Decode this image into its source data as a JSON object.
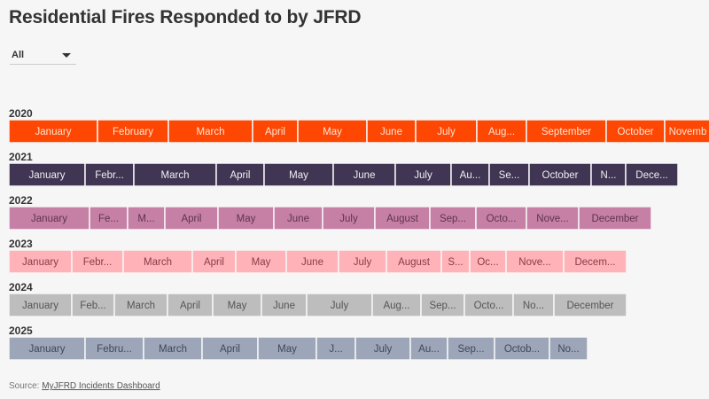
{
  "title": "Residential Fires Responded to by JFRD",
  "filter": {
    "selected": "All"
  },
  "source": {
    "label": "Source:",
    "link_text": "MyJFRD Incidents Dashboard"
  },
  "chart_data": {
    "type": "bar",
    "orientation": "horizontal-stacked",
    "title": "Residential Fires Responded to by JFRD",
    "note": "values are relative segment sizes estimated from bar widths; no numeric axis shown",
    "grid": false,
    "series": [
      {
        "name": "2020",
        "color": "#fd4703",
        "text_color": "#ffe3d2",
        "labels": [
          "January",
          "February",
          "March",
          "April",
          "May",
          "June",
          "July",
          "Aug...",
          "September",
          "October",
          "Novemb"
        ],
        "values": [
          100,
          80,
          95,
          51,
          78,
          55,
          69,
          56,
          90,
          66,
          52
        ]
      },
      {
        "name": "2021",
        "color": "#403552",
        "text_color": "#f0eef4",
        "labels": [
          "January",
          "Febr...",
          "March",
          "April",
          "May",
          "June",
          "July",
          "Au...",
          "Se...",
          "October",
          "N...",
          "Dece..."
        ],
        "values": [
          86,
          55,
          93,
          54,
          78,
          70,
          63,
          43,
          45,
          70,
          39,
          59
        ]
      },
      {
        "name": "2022",
        "color": "#c680a5",
        "text_color": "#5e3350",
        "labels": [
          "January",
          "Fe...",
          "M...",
          "April",
          "May",
          "June",
          "July",
          "August",
          "Sep...",
          "Octo...",
          "Nove...",
          "December"
        ],
        "values": [
          91,
          43,
          42,
          60,
          63,
          55,
          59,
          62,
          52,
          57,
          59,
          82
        ]
      },
      {
        "name": "2023",
        "color": "#ffb3b9",
        "text_color": "#8c3a45",
        "labels": [
          "January",
          "Febr...",
          "March",
          "April",
          "May",
          "June",
          "July",
          "August",
          "S...",
          "Oc...",
          "Nove...",
          "Decem..."
        ],
        "values": [
          71,
          58,
          78,
          49,
          57,
          59,
          54,
          62,
          32,
          41,
          65,
          71
        ]
      },
      {
        "name": "2024",
        "color": "#bdbdbd",
        "text_color": "#555555",
        "labels": [
          "January",
          "Feb...",
          "March",
          "April",
          "May",
          "June",
          "July",
          "Aug...",
          "Sep...",
          "Octo...",
          "No...",
          "December"
        ],
        "values": [
          71,
          48,
          60,
          51,
          55,
          51,
          74,
          55,
          49,
          55,
          46,
          82
        ]
      },
      {
        "name": "2025",
        "color": "#9da6b8",
        "text_color": "#3e485a",
        "labels": [
          "January",
          "Febru...",
          "March",
          "April",
          "May",
          "J...",
          "July",
          "Au...",
          "Sep...",
          "Octob...",
          "No..."
        ],
        "values": [
          86,
          66,
          66,
          63,
          66,
          44,
          62,
          42,
          53,
          62,
          43
        ]
      }
    ]
  }
}
